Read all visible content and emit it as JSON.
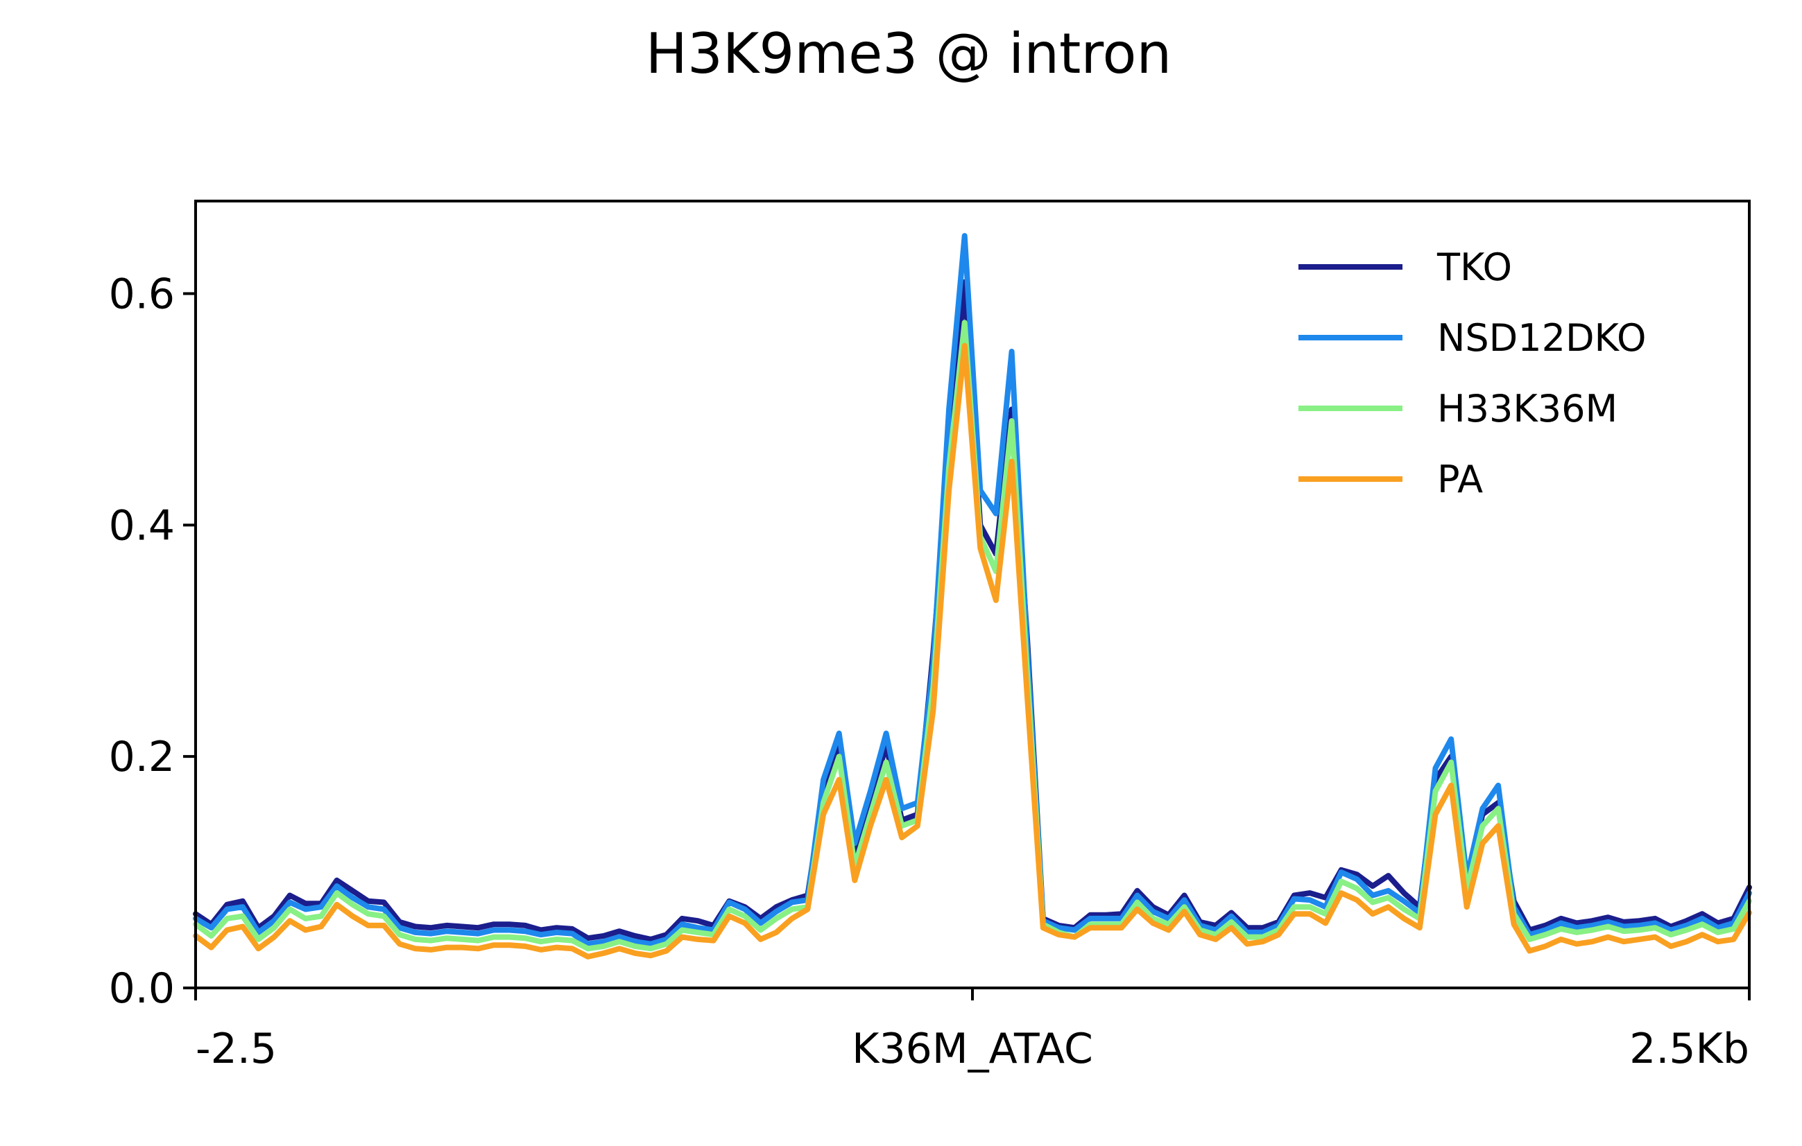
{
  "chart_data": {
    "type": "line",
    "title": "H3K9me3 @ intron",
    "xlabel": "",
    "ylabel": "",
    "xlim": [
      0,
      100
    ],
    "ylim": [
      0,
      0.68
    ],
    "y_ticks": [
      0.0,
      0.2,
      0.4,
      0.6
    ],
    "y_tick_labels": [
      "0.0",
      "0.2",
      "0.4",
      "0.6"
    ],
    "x_ticks": [
      0,
      50,
      100
    ],
    "x_tick_labels": [
      "-2.5",
      "K36M_ATAC",
      "2.5Kb"
    ],
    "grid": false,
    "legend_position": "top-right",
    "series": [
      {
        "name": "TKO",
        "color": "#1b1e8c",
        "values": [
          0.064,
          0.055,
          0.072,
          0.075,
          0.052,
          0.062,
          0.08,
          0.073,
          0.073,
          0.093,
          0.084,
          0.075,
          0.074,
          0.057,
          0.053,
          0.052,
          0.054,
          0.053,
          0.052,
          0.055,
          0.055,
          0.054,
          0.05,
          0.052,
          0.051,
          0.043,
          0.045,
          0.049,
          0.045,
          0.042,
          0.046,
          0.06,
          0.058,
          0.054,
          0.075,
          0.07,
          0.06,
          0.07,
          0.076,
          0.08,
          0.17,
          0.21,
          0.115,
          0.16,
          0.21,
          0.145,
          0.15,
          0.29,
          0.46,
          0.61,
          0.4,
          0.375,
          0.5,
          0.3,
          0.06,
          0.054,
          0.052,
          0.063,
          0.063,
          0.064,
          0.084,
          0.07,
          0.063,
          0.08,
          0.057,
          0.054,
          0.065,
          0.052,
          0.052,
          0.057,
          0.08,
          0.082,
          0.078,
          0.102,
          0.098,
          0.088,
          0.097,
          0.082,
          0.07,
          0.18,
          0.2,
          0.09,
          0.15,
          0.16,
          0.075,
          0.05,
          0.054,
          0.06,
          0.056,
          0.058,
          0.061,
          0.057,
          0.058,
          0.06,
          0.053,
          0.058,
          0.064,
          0.056,
          0.06,
          0.087
        ]
      },
      {
        "name": "NSD12DKO",
        "color": "#1e88ec",
        "values": [
          0.06,
          0.052,
          0.068,
          0.07,
          0.048,
          0.058,
          0.074,
          0.068,
          0.07,
          0.088,
          0.078,
          0.07,
          0.068,
          0.052,
          0.048,
          0.047,
          0.049,
          0.048,
          0.047,
          0.05,
          0.05,
          0.049,
          0.046,
          0.048,
          0.047,
          0.038,
          0.04,
          0.044,
          0.04,
          0.038,
          0.042,
          0.055,
          0.052,
          0.05,
          0.074,
          0.068,
          0.056,
          0.066,
          0.074,
          0.076,
          0.18,
          0.22,
          0.125,
          0.17,
          0.22,
          0.155,
          0.16,
          0.28,
          0.5,
          0.65,
          0.43,
          0.41,
          0.55,
          0.29,
          0.058,
          0.052,
          0.05,
          0.06,
          0.06,
          0.06,
          0.08,
          0.066,
          0.06,
          0.076,
          0.054,
          0.05,
          0.062,
          0.048,
          0.048,
          0.054,
          0.077,
          0.076,
          0.07,
          0.1,
          0.094,
          0.08,
          0.084,
          0.075,
          0.065,
          0.19,
          0.215,
          0.095,
          0.155,
          0.175,
          0.07,
          0.046,
          0.05,
          0.056,
          0.052,
          0.054,
          0.057,
          0.053,
          0.054,
          0.056,
          0.05,
          0.054,
          0.06,
          0.052,
          0.056,
          0.082
        ]
      },
      {
        "name": "H33K36M",
        "color": "#88f085",
        "values": [
          0.055,
          0.045,
          0.06,
          0.062,
          0.042,
          0.052,
          0.068,
          0.06,
          0.062,
          0.082,
          0.072,
          0.064,
          0.062,
          0.046,
          0.042,
          0.041,
          0.043,
          0.042,
          0.041,
          0.044,
          0.044,
          0.043,
          0.04,
          0.042,
          0.041,
          0.034,
          0.036,
          0.04,
          0.036,
          0.034,
          0.038,
          0.05,
          0.048,
          0.046,
          0.068,
          0.062,
          0.05,
          0.06,
          0.068,
          0.07,
          0.16,
          0.2,
          0.105,
          0.15,
          0.195,
          0.14,
          0.145,
          0.26,
          0.45,
          0.575,
          0.39,
          0.36,
          0.49,
          0.27,
          0.055,
          0.048,
          0.044,
          0.055,
          0.055,
          0.055,
          0.074,
          0.06,
          0.055,
          0.07,
          0.05,
          0.046,
          0.057,
          0.044,
          0.044,
          0.05,
          0.07,
          0.07,
          0.064,
          0.092,
          0.086,
          0.074,
          0.078,
          0.068,
          0.06,
          0.17,
          0.195,
          0.085,
          0.14,
          0.155,
          0.064,
          0.042,
          0.046,
          0.051,
          0.048,
          0.05,
          0.053,
          0.049,
          0.05,
          0.052,
          0.046,
          0.05,
          0.055,
          0.048,
          0.051,
          0.075
        ]
      },
      {
        "name": "PA",
        "color": "#f9a021",
        "values": [
          0.045,
          0.035,
          0.05,
          0.053,
          0.034,
          0.044,
          0.058,
          0.05,
          0.053,
          0.072,
          0.062,
          0.054,
          0.054,
          0.038,
          0.034,
          0.033,
          0.035,
          0.035,
          0.034,
          0.037,
          0.037,
          0.036,
          0.033,
          0.035,
          0.034,
          0.027,
          0.03,
          0.034,
          0.03,
          0.028,
          0.032,
          0.044,
          0.042,
          0.041,
          0.062,
          0.056,
          0.042,
          0.048,
          0.06,
          0.068,
          0.15,
          0.18,
          0.093,
          0.14,
          0.18,
          0.13,
          0.14,
          0.24,
          0.43,
          0.555,
          0.38,
          0.335,
          0.455,
          0.25,
          0.052,
          0.046,
          0.044,
          0.052,
          0.052,
          0.052,
          0.068,
          0.056,
          0.05,
          0.066,
          0.046,
          0.042,
          0.052,
          0.038,
          0.04,
          0.046,
          0.064,
          0.064,
          0.056,
          0.082,
          0.076,
          0.064,
          0.07,
          0.06,
          0.052,
          0.15,
          0.175,
          0.07,
          0.125,
          0.14,
          0.055,
          0.032,
          0.036,
          0.042,
          0.038,
          0.04,
          0.044,
          0.04,
          0.042,
          0.044,
          0.036,
          0.04,
          0.046,
          0.04,
          0.042,
          0.065
        ]
      }
    ]
  }
}
